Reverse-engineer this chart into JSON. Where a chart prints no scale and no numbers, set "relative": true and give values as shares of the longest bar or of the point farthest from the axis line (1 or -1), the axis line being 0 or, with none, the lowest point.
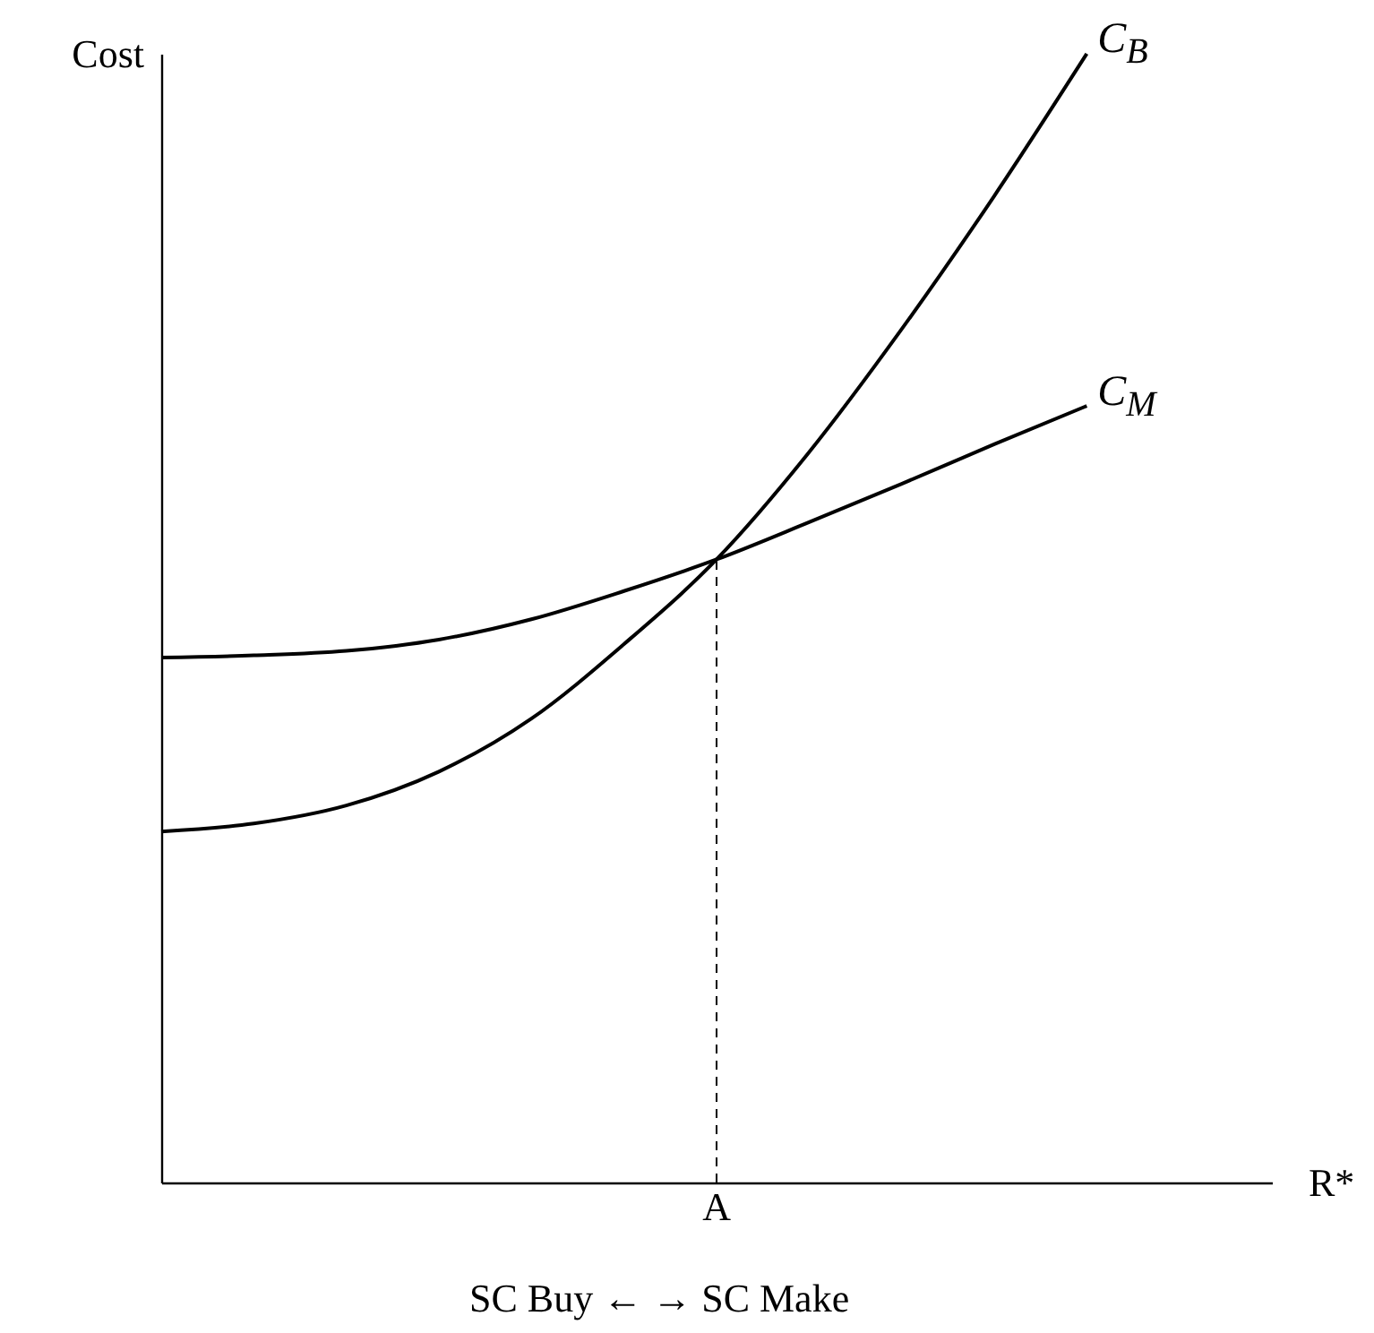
{
  "chart_data": {
    "type": "line",
    "relative": true,
    "xlabel": "R*",
    "ylabel": "Cost",
    "categories": [
      null,
      null,
      null,
      null,
      null,
      null,
      null,
      null,
      null,
      null,
      null,
      null,
      null
    ],
    "series": [
      {
        "name": "C$_{B}$",
        "color": "#000000",
        "values": [
          0.311,
          0.318,
          0.334,
          0.364,
          0.411,
          0.477,
          0.552,
          0.647,
          0.756,
          0.874,
          1,
          null,
          null
        ]
      },
      {
        "name": "C$_{M}$",
        "color": "#000000",
        "values": [
          0.465,
          0.467,
          0.471,
          0.481,
          0.499,
          0.524,
          0.552,
          0.585,
          0.619,
          0.654,
          0.688,
          null,
          null
        ]
      }
    ],
    "annotations": [
      "A",
      "SC Buy ← → SC Make"
    ],
    "legend": false,
    "grid": false,
    "marker": "none",
    "line_style": "solid"
  }
}
